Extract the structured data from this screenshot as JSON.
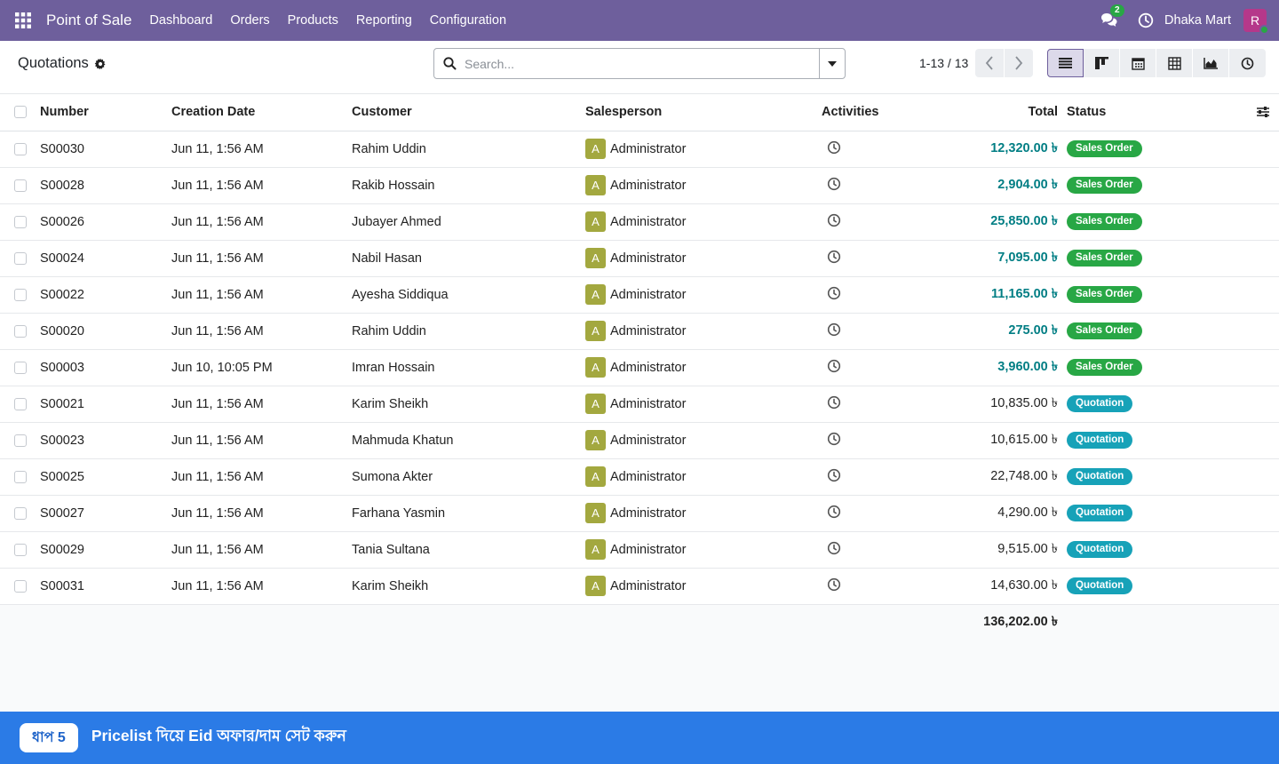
{
  "navbar": {
    "brand": "Point of Sale",
    "menu": [
      "Dashboard",
      "Orders",
      "Products",
      "Reporting",
      "Configuration"
    ],
    "chat_count": "2",
    "company": "Dhaka Mart",
    "avatar_initial": "R",
    "bg_color": "#6e5f9c"
  },
  "control": {
    "title": "Quotations",
    "search_placeholder": "Search...",
    "pager": "1-13 / 13"
  },
  "table": {
    "headers": {
      "number": "Number",
      "date": "Creation Date",
      "customer": "Customer",
      "salesperson": "Salesperson",
      "activities": "Activities",
      "total": "Total",
      "status": "Status"
    },
    "rows": [
      {
        "number": "S00030",
        "date": "Jun 11, 1:56 AM",
        "customer": "Rahim Uddin",
        "sp_initial": "A",
        "salesperson": "Administrator",
        "total": "12,320.00 ৳",
        "status": "Sales Order"
      },
      {
        "number": "S00028",
        "date": "Jun 11, 1:56 AM",
        "customer": "Rakib Hossain",
        "sp_initial": "A",
        "salesperson": "Administrator",
        "total": "2,904.00 ৳",
        "status": "Sales Order"
      },
      {
        "number": "S00026",
        "date": "Jun 11, 1:56 AM",
        "customer": "Jubayer Ahmed",
        "sp_initial": "A",
        "salesperson": "Administrator",
        "total": "25,850.00 ৳",
        "status": "Sales Order"
      },
      {
        "number": "S00024",
        "date": "Jun 11, 1:56 AM",
        "customer": "Nabil Hasan",
        "sp_initial": "A",
        "salesperson": "Administrator",
        "total": "7,095.00 ৳",
        "status": "Sales Order"
      },
      {
        "number": "S00022",
        "date": "Jun 11, 1:56 AM",
        "customer": "Ayesha Siddiqua",
        "sp_initial": "A",
        "salesperson": "Administrator",
        "total": "11,165.00 ৳",
        "status": "Sales Order"
      },
      {
        "number": "S00020",
        "date": "Jun 11, 1:56 AM",
        "customer": "Rahim Uddin",
        "sp_initial": "A",
        "salesperson": "Administrator",
        "total": "275.00 ৳",
        "status": "Sales Order"
      },
      {
        "number": "S00003",
        "date": "Jun 10, 10:05 PM",
        "customer": "Imran Hossain",
        "sp_initial": "A",
        "salesperson": "Administrator",
        "total": "3,960.00 ৳",
        "status": "Sales Order"
      },
      {
        "number": "S00021",
        "date": "Jun 11, 1:56 AM",
        "customer": "Karim Sheikh",
        "sp_initial": "A",
        "salesperson": "Administrator",
        "total": "10,835.00 ৳",
        "status": "Quotation"
      },
      {
        "number": "S00023",
        "date": "Jun 11, 1:56 AM",
        "customer": "Mahmuda Khatun",
        "sp_initial": "A",
        "salesperson": "Administrator",
        "total": "10,615.00 ৳",
        "status": "Quotation"
      },
      {
        "number": "S00025",
        "date": "Jun 11, 1:56 AM",
        "customer": "Sumona Akter",
        "sp_initial": "A",
        "salesperson": "Administrator",
        "total": "22,748.00 ৳",
        "status": "Quotation"
      },
      {
        "number": "S00027",
        "date": "Jun 11, 1:56 AM",
        "customer": "Farhana Yasmin",
        "sp_initial": "A",
        "salesperson": "Administrator",
        "total": "4,290.00 ৳",
        "status": "Quotation"
      },
      {
        "number": "S00029",
        "date": "Jun 11, 1:56 AM",
        "customer": "Tania Sultana",
        "sp_initial": "A",
        "salesperson": "Administrator",
        "total": "9,515.00 ৳",
        "status": "Quotation"
      },
      {
        "number": "S00031",
        "date": "Jun 11, 1:56 AM",
        "customer": "Karim Sheikh",
        "sp_initial": "A",
        "salesperson": "Administrator",
        "total": "14,630.00 ৳",
        "status": "Quotation"
      }
    ],
    "sum_total": "136,202.00 ৳"
  },
  "colors": {
    "sales_order_badge": "#28a745",
    "quotation_badge": "#17a2b8",
    "link_total": "#017e84",
    "banner": "#2b7be6"
  },
  "banner": {
    "step": "ধাপ 5",
    "text": "Pricelist দিয়ে Eid অফার/দাম সেট করুন"
  }
}
